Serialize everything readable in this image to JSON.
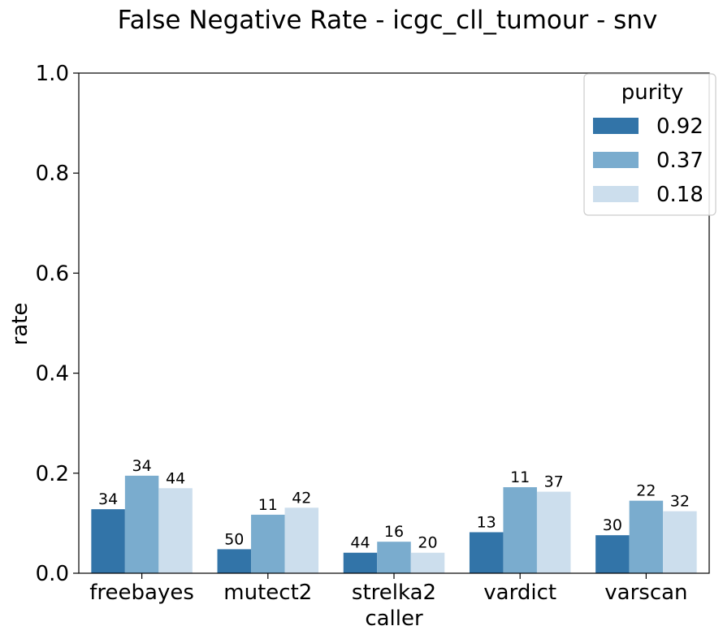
{
  "chart_data": {
    "type": "bar",
    "title": "False Negative Rate - icgc_cll_tumour - snv",
    "xlabel": "caller",
    "ylabel": "rate",
    "ylim": [
      0,
      1.0
    ],
    "yticks": [
      "0.0",
      "0.2",
      "0.4",
      "0.6",
      "0.8",
      "1.0"
    ],
    "grid": false,
    "legend": {
      "title": "purity",
      "placement": "top-right"
    },
    "categories": [
      "freebayes",
      "mutect2",
      "strelka2",
      "vardict",
      "varscan"
    ],
    "series": [
      {
        "name": "0.92",
        "color": "#3274a8",
        "values": [
          0.128,
          0.048,
          0.041,
          0.082,
          0.076
        ],
        "labels": [
          "34",
          "50",
          "44",
          "13",
          "30"
        ]
      },
      {
        "name": "0.37",
        "color": "#7aacce",
        "values": [
          0.195,
          0.117,
          0.063,
          0.172,
          0.145
        ],
        "labels": [
          "34",
          "11",
          "16",
          "11",
          "22"
        ]
      },
      {
        "name": "0.18",
        "color": "#ccdeed",
        "values": [
          0.17,
          0.131,
          0.041,
          0.163,
          0.124
        ],
        "labels": [
          "44",
          "42",
          "20",
          "37",
          "32"
        ]
      }
    ]
  }
}
